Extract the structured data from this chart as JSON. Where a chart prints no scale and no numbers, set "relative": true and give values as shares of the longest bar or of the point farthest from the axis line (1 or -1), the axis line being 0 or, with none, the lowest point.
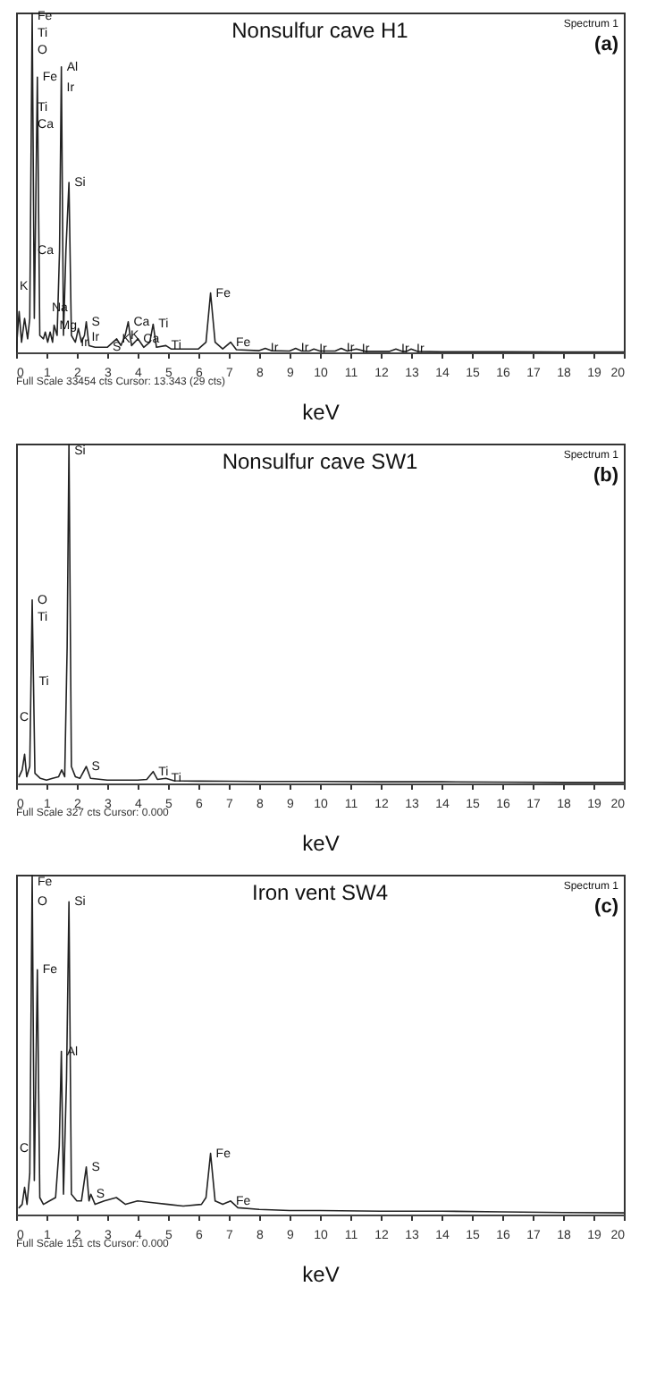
{
  "chart_data": [
    {
      "type": "line",
      "title": "Nonsulfur cave H1",
      "xlabel": "keV",
      "relative": true,
      "color": "#222222",
      "xlim": [
        0,
        20
      ],
      "xticks": [
        0,
        1,
        2,
        3,
        4,
        5,
        6,
        7,
        8,
        9,
        10,
        11,
        12,
        13,
        14,
        15,
        16,
        17,
        18,
        19,
        20
      ],
      "x": [
        0,
        0.1,
        0.18,
        0.28,
        0.38,
        0.45,
        0.53,
        0.6,
        0.7,
        0.78,
        0.9,
        0.96,
        1.04,
        1.12,
        1.2,
        1.25,
        1.35,
        1.43,
        1.49,
        1.56,
        1.64,
        1.74,
        1.82,
        1.95,
        2.05,
        2.15,
        2.25,
        2.31,
        2.4,
        2.6,
        3.0,
        3.31,
        3.45,
        3.59,
        3.69,
        3.8,
        4.01,
        4.2,
        4.4,
        4.51,
        4.62,
        4.93,
        5.1,
        6.0,
        6.25,
        6.4,
        6.55,
        6.8,
        7.06,
        7.25,
        8,
        8.2,
        8.4,
        9.0,
        9.2,
        9.4,
        9.65,
        9.8,
        10.0,
        10.5,
        10.7,
        10.9,
        11.2,
        11.5,
        12.3,
        12.5,
        12.7,
        12.85,
        13.0,
        13.2,
        14,
        16,
        18,
        20
      ],
      "values": [
        0,
        0.12,
        0.03,
        0.1,
        0.04,
        0.1,
        1.0,
        0.1,
        0.81,
        0.05,
        0.04,
        0.06,
        0.03,
        0.06,
        0.03,
        0.08,
        0.05,
        0.3,
        0.84,
        0.05,
        0.3,
        0.5,
        0.05,
        0.03,
        0.07,
        0.03,
        0.05,
        0.09,
        0.02,
        0.015,
        0.015,
        0.04,
        0.02,
        0.05,
        0.09,
        0.02,
        0.04,
        0.015,
        0.03,
        0.083,
        0.015,
        0.02,
        0.01,
        0.01,
        0.03,
        0.175,
        0.03,
        0.01,
        0.03,
        0.008,
        0.005,
        0.012,
        0.005,
        0.004,
        0.012,
        0.004,
        0.004,
        0.01,
        0.004,
        0.004,
        0.012,
        0.004,
        0.01,
        0.003,
        0.003,
        0.01,
        0.003,
        0.003,
        0.01,
        0.003,
        0.002,
        0.002,
        0.001,
        0.001
      ],
      "annotations": [
        "Spectrum 1",
        "(a)",
        "Full Scale 33454 cts Cursor: 13.343 (29 cts)",
        "K",
        "Na",
        {
          "text": "Fe",
          "x": 0.53,
          "y": 0.99
        },
        {
          "text": "Ti",
          "x": 0.53,
          "y": 0.94
        },
        {
          "text": "O",
          "x": 0.53,
          "y": 0.89
        },
        {
          "text": "Fe",
          "x": 0.7,
          "y": 0.81
        },
        {
          "text": "Ti",
          "x": 0.53,
          "y": 0.72
        },
        {
          "text": "Ca",
          "x": 0.53,
          "y": 0.67
        },
        {
          "text": "Al",
          "x": 1.49,
          "y": 0.84
        },
        {
          "text": "Ir",
          "x": 1.485,
          "y": 0.78
        },
        {
          "text": "Si",
          "x": 1.74,
          "y": 0.5
        },
        {
          "text": "Ca",
          "x": 0.53,
          "y": 0.3
        },
        {
          "text": "Mg",
          "x": 1.25,
          "y": 0.08
        },
        {
          "text": "Ir",
          "x": 1.95,
          "y": 0.03
        },
        {
          "text": "S",
          "x": 2.31,
          "y": 0.09
        },
        {
          "text": "Ir",
          "x": 2.31,
          "y": 0.045
        },
        {
          "text": "S",
          "x": 3.0,
          "y": 0.015
        },
        {
          "text": "K",
          "x": 3.31,
          "y": 0.04
        },
        {
          "text": "K",
          "x": 3.59,
          "y": 0.05
        },
        {
          "text": "Ca",
          "x": 3.69,
          "y": 0.09
        },
        {
          "text": "Ca",
          "x": 4.01,
          "y": 0.04
        },
        {
          "text": "Ti",
          "x": 4.51,
          "y": 0.083
        },
        {
          "text": "Ti",
          "x": 4.93,
          "y": 0.02
        },
        {
          "text": "Fe",
          "x": 6.4,
          "y": 0.175
        },
        {
          "text": "Fe",
          "x": 7.06,
          "y": 0.03
        },
        {
          "text": "Ir",
          "x": 8.2,
          "y": 0.012
        },
        {
          "text": "Ir",
          "x": 9.2,
          "y": 0.012
        },
        {
          "text": "Ir",
          "x": 9.8,
          "y": 0.01
        },
        {
          "text": "Ir",
          "x": 10.7,
          "y": 0.012
        },
        {
          "text": "Ir",
          "x": 11.2,
          "y": 0.01
        },
        {
          "text": "Ir",
          "x": 12.5,
          "y": 0.01
        },
        {
          "text": "Ir",
          "x": 13.0,
          "y": 0.01
        }
      ]
    },
    {
      "type": "line",
      "title": "Nonsulfur cave SW1",
      "xlabel": "keV",
      "relative": true,
      "color": "#222222",
      "xlim": [
        0,
        20
      ],
      "xticks": [
        0,
        1,
        2,
        3,
        4,
        5,
        6,
        7,
        8,
        9,
        10,
        11,
        12,
        13,
        14,
        15,
        16,
        17,
        18,
        19,
        20
      ],
      "x": [
        0.1,
        0.2,
        0.28,
        0.35,
        0.45,
        0.53,
        0.62,
        0.8,
        1.0,
        1.2,
        1.4,
        1.5,
        1.6,
        1.68,
        1.74,
        1.82,
        1.95,
        2.1,
        2.31,
        2.45,
        3,
        4,
        4.3,
        4.51,
        4.65,
        4.93,
        5.2,
        6,
        8,
        10,
        12,
        14,
        16,
        18,
        20
      ],
      "values": [
        0.02,
        0.04,
        0.086,
        0.02,
        0.05,
        0.54,
        0.03,
        0.015,
        0.01,
        0.015,
        0.02,
        0.04,
        0.02,
        0.4,
        1.0,
        0.05,
        0.02,
        0.015,
        0.05,
        0.015,
        0.01,
        0.01,
        0.012,
        0.035,
        0.012,
        0.015,
        0.008,
        0.007,
        0.006,
        0.006,
        0.005,
        0.005,
        0.004,
        0.003,
        0.003
      ],
      "annotations": [
        "Spectrum 1",
        "(b)",
        "Full Scale 327 cts Cursor: 0.000",
        "C",
        {
          "text": "Si",
          "x": 1.74,
          "y": 0.98
        },
        {
          "text": "O",
          "x": 0.53,
          "y": 0.54
        },
        {
          "text": "Ti",
          "x": 0.53,
          "y": 0.49
        },
        {
          "text": "Ti",
          "x": 0.57,
          "y": 0.3
        },
        {
          "text": "S",
          "x": 2.31,
          "y": 0.05
        },
        {
          "text": "Ti",
          "x": 4.51,
          "y": 0.035
        },
        {
          "text": "Ti",
          "x": 4.93,
          "y": 0.015
        }
      ]
    },
    {
      "type": "line",
      "title": "Iron vent SW4",
      "xlabel": "keV",
      "relative": true,
      "color": "#222222",
      "xlim": [
        0,
        20
      ],
      "xticks": [
        0,
        1,
        2,
        3,
        4,
        5,
        6,
        7,
        8,
        9,
        10,
        11,
        12,
        13,
        14,
        15,
        16,
        17,
        18,
        19,
        20
      ],
      "x": [
        0.1,
        0.2,
        0.28,
        0.36,
        0.45,
        0.53,
        0.6,
        0.7,
        0.78,
        0.9,
        1.1,
        1.3,
        1.42,
        1.49,
        1.56,
        1.66,
        1.74,
        1.82,
        2.0,
        2.15,
        2.31,
        2.4,
        2.46,
        2.6,
        2.9,
        3.3,
        3.6,
        4.0,
        4.5,
        5,
        5.5,
        6.1,
        6.25,
        6.4,
        6.55,
        6.8,
        7.06,
        7.3,
        8,
        9,
        10,
        12,
        14,
        16,
        18,
        20
      ],
      "values": [
        0.02,
        0.03,
        0.08,
        0.03,
        0.12,
        1.0,
        0.1,
        0.72,
        0.05,
        0.03,
        0.04,
        0.05,
        0.2,
        0.48,
        0.06,
        0.4,
        0.92,
        0.06,
        0.04,
        0.04,
        0.14,
        0.04,
        0.06,
        0.03,
        0.04,
        0.05,
        0.03,
        0.04,
        0.035,
        0.03,
        0.025,
        0.03,
        0.05,
        0.18,
        0.04,
        0.03,
        0.04,
        0.02,
        0.015,
        0.012,
        0.012,
        0.01,
        0.01,
        0.008,
        0.006,
        0.005
      ],
      "annotations": [
        "Spectrum 1",
        "(c)",
        "Full Scale 151 cts Cursor: 0.000",
        "C",
        {
          "text": "Fe",
          "x": 0.53,
          "y": 0.98
        },
        {
          "text": "O",
          "x": 0.53,
          "y": 0.92
        },
        {
          "text": "Si",
          "x": 1.74,
          "y": 0.92
        },
        {
          "text": "Fe",
          "x": 0.7,
          "y": 0.72
        },
        {
          "text": "Al",
          "x": 1.49,
          "y": 0.48
        },
        {
          "text": "S",
          "x": 2.31,
          "y": 0.14
        },
        {
          "text": "S",
          "x": 2.46,
          "y": 0.06
        },
        {
          "text": "Fe",
          "x": 6.4,
          "y": 0.18
        },
        {
          "text": "Fe",
          "x": 7.06,
          "y": 0.04
        }
      ]
    }
  ]
}
